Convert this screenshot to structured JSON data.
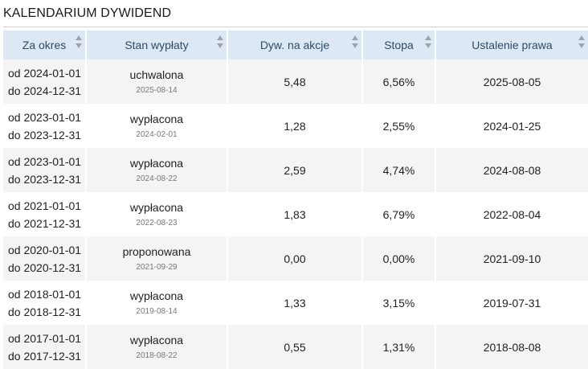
{
  "page": {
    "title": "KALENDARIUM DYWIDEND"
  },
  "table": {
    "headers": [
      "Za okres",
      "Stan wypłaty",
      "Dyw. na akcje",
      "Stopa",
      "Ustalenie prawa"
    ],
    "rows": [
      {
        "period_from": "od 2024-01-01",
        "period_to": "do 2024-12-31",
        "status": "uchwalona",
        "status_date": "2025-08-14",
        "dividend": "5,48",
        "rate": "6,56%",
        "record_date": "2025-08-05"
      },
      {
        "period_from": "od 2023-01-01",
        "period_to": "do 2023-12-31",
        "status": "wypłacona",
        "status_date": "2024-02-01",
        "dividend": "1,28",
        "rate": "2,55%",
        "record_date": "2024-01-25"
      },
      {
        "period_from": "od 2023-01-01",
        "period_to": "do 2023-12-31",
        "status": "wypłacona",
        "status_date": "2024-08-22",
        "dividend": "2,59",
        "rate": "4,74%",
        "record_date": "2024-08-08"
      },
      {
        "period_from": "od 2021-01-01",
        "period_to": "do 2021-12-31",
        "status": "wypłacona",
        "status_date": "2022-08-23",
        "dividend": "1,83",
        "rate": "6,79%",
        "record_date": "2022-08-04"
      },
      {
        "period_from": "od 2020-01-01",
        "period_to": "do 2020-12-31",
        "status": "proponowana",
        "status_date": "2021-09-29",
        "dividend": "0,00",
        "rate": "0,00%",
        "record_date": "2021-09-10"
      },
      {
        "period_from": "od 2018-01-01",
        "period_to": "do 2018-12-31",
        "status": "wypłacona",
        "status_date": "2019-08-14",
        "dividend": "1,33",
        "rate": "3,15%",
        "record_date": "2019-07-31"
      },
      {
        "period_from": "od 2017-01-01",
        "period_to": "do 2017-12-31",
        "status": "wypłacona",
        "status_date": "2018-08-22",
        "dividend": "0,55",
        "rate": "1,31%",
        "record_date": "2018-08-08"
      }
    ]
  }
}
